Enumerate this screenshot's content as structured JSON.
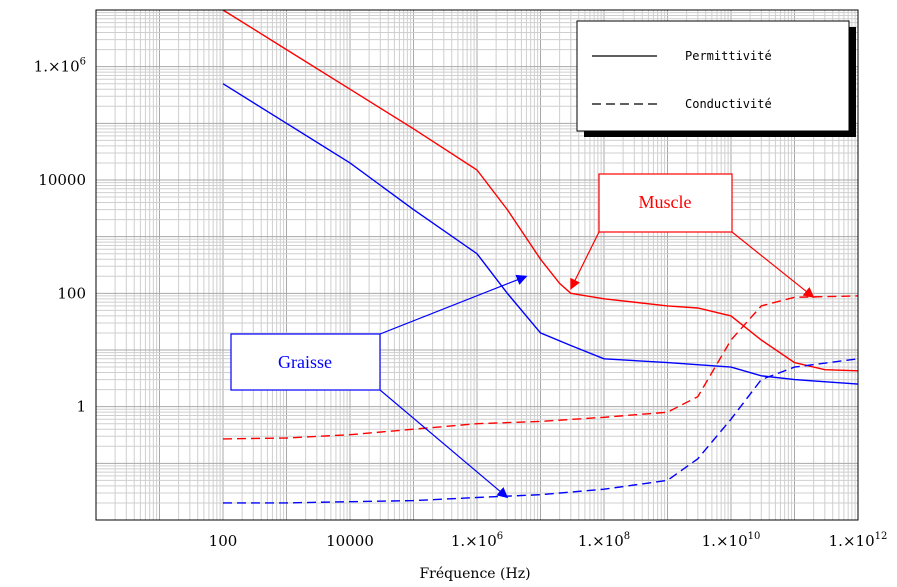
{
  "chart_data": {
    "type": "line",
    "xlabel": "Fréquence (Hz)",
    "ylabel": "",
    "x_scale": "log",
    "y_scale": "log",
    "xlim": [
      1,
      1000000000000
    ],
    "ylim": [
      0.01,
      10000000
    ],
    "grid": true,
    "legend_position": "top-right",
    "x_ticks": [
      {
        "value": 100,
        "base": "100",
        "sup": ""
      },
      {
        "value": 10000,
        "base": "10000",
        "sup": ""
      },
      {
        "value": 1000000,
        "base": "1.×10",
        "sup": "6"
      },
      {
        "value": 100000000,
        "base": "1.×10",
        "sup": "8"
      },
      {
        "value": 10000000000,
        "base": "1.×10",
        "sup": "10"
      },
      {
        "value": 1000000000000,
        "base": "1.×10",
        "sup": "12"
      }
    ],
    "y_ticks": [
      {
        "value": 1,
        "base": "1",
        "sup": ""
      },
      {
        "value": 100,
        "base": "100",
        "sup": ""
      },
      {
        "value": 10000,
        "base": "10000",
        "sup": ""
      },
      {
        "value": 1000000,
        "base": "1.×10",
        "sup": "6"
      }
    ],
    "legend": [
      {
        "label": "Permittivité",
        "style": "solid"
      },
      {
        "label": "Conductivité",
        "style": "dashed"
      }
    ],
    "series": [
      {
        "tissue": "Muscle",
        "quantity": "Permittivité",
        "color": "#ff0000",
        "dash": false,
        "points": [
          [
            100,
            10000000
          ],
          [
            1000,
            2000000
          ],
          [
            10000,
            400000
          ],
          [
            100000,
            80000
          ],
          [
            1000000,
            15000
          ],
          [
            3000000,
            3000
          ],
          [
            10000000,
            400
          ],
          [
            20000000,
            150
          ],
          [
            30000000,
            100
          ],
          [
            100000000,
            80
          ],
          [
            1000000000,
            60
          ],
          [
            3000000000,
            55
          ],
          [
            10000000000,
            40
          ],
          [
            30000000000,
            15
          ],
          [
            100000000000,
            6
          ],
          [
            300000000000,
            4.5
          ],
          [
            1000000000000,
            4.3
          ]
        ]
      },
      {
        "tissue": "Graisse",
        "quantity": "Permittivité",
        "color": "#0000ff",
        "dash": false,
        "points": [
          [
            100,
            500000
          ],
          [
            1000,
            100000
          ],
          [
            10000,
            20000
          ],
          [
            100000,
            3000
          ],
          [
            1000000,
            500
          ],
          [
            3000000,
            100
          ],
          [
            10000000,
            20
          ],
          [
            30000000,
            12
          ],
          [
            100000000,
            7
          ],
          [
            1000000000,
            6
          ],
          [
            10000000000,
            5
          ],
          [
            30000000000,
            3.5
          ],
          [
            100000000000,
            3
          ],
          [
            1000000000000,
            2.5
          ]
        ]
      },
      {
        "tissue": "Muscle",
        "quantity": "Conductivité",
        "color": "#ff0000",
        "dash": true,
        "points": [
          [
            100,
            0.27
          ],
          [
            1000,
            0.28
          ],
          [
            10000,
            0.32
          ],
          [
            100000,
            0.4
          ],
          [
            1000000,
            0.5
          ],
          [
            10000000,
            0.55
          ],
          [
            100000000,
            0.65
          ],
          [
            1000000000,
            0.8
          ],
          [
            3000000000,
            1.5
          ],
          [
            10000000000,
            15
          ],
          [
            30000000000,
            60
          ],
          [
            100000000000,
            85
          ],
          [
            1000000000000,
            90
          ]
        ]
      },
      {
        "tissue": "Graisse",
        "quantity": "Conductivité",
        "color": "#0000ff",
        "dash": true,
        "points": [
          [
            100,
            0.02
          ],
          [
            1000,
            0.02
          ],
          [
            10000,
            0.021
          ],
          [
            100000,
            0.022
          ],
          [
            1000000,
            0.025
          ],
          [
            10000000,
            0.028
          ],
          [
            100000000,
            0.035
          ],
          [
            1000000000,
            0.05
          ],
          [
            3000000000,
            0.12
          ],
          [
            10000000000,
            0.6
          ],
          [
            30000000000,
            3
          ],
          [
            100000000000,
            5
          ],
          [
            1000000000000,
            7
          ]
        ]
      }
    ],
    "annotations": [
      {
        "text": "Muscle",
        "color": "#ff0000",
        "arrows_to": [
          [
            30000000,
            120
          ],
          [
            200000000000,
            85
          ]
        ]
      },
      {
        "text": "Graisse",
        "color": "#0000ff",
        "arrows_to": [
          [
            6000000,
            200
          ],
          [
            3000000,
            0.025
          ]
        ]
      }
    ]
  }
}
